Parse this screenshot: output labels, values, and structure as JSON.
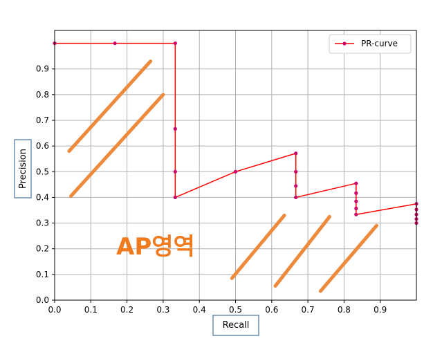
{
  "chart_data": {
    "type": "line",
    "title": "",
    "xlabel": "Recall",
    "ylabel": "Precision",
    "xlim": [
      0,
      1.0
    ],
    "ylim": [
      0,
      1.05
    ],
    "grid": true,
    "x_ticks": [
      "0.0",
      "0.1",
      "0.2",
      "0.3",
      "0.4",
      "0.5",
      "0.6",
      "0.7",
      "0.8",
      "0.9"
    ],
    "y_ticks": [
      "0.0",
      "0.1",
      "0.2",
      "0.3",
      "0.4",
      "0.5",
      "0.6",
      "0.7",
      "0.8",
      "0.9"
    ],
    "legend": {
      "placement": "top-right",
      "entries": [
        "PR-curve"
      ]
    },
    "series": [
      {
        "name": "PR-curve",
        "color": "#ff0000",
        "marker_color": "#cc0066",
        "points": [
          [
            0.0,
            1.0
          ],
          [
            0.1667,
            1.0
          ],
          [
            0.3333,
            1.0
          ],
          [
            0.3333,
            0.6667
          ],
          [
            0.3333,
            0.5
          ],
          [
            0.3333,
            0.4
          ],
          [
            0.5,
            0.5
          ],
          [
            0.6667,
            0.5714
          ],
          [
            0.6667,
            0.5
          ],
          [
            0.6667,
            0.4444
          ],
          [
            0.6667,
            0.4
          ],
          [
            0.8333,
            0.4545
          ],
          [
            0.8333,
            0.4167
          ],
          [
            0.8333,
            0.3846
          ],
          [
            0.8333,
            0.3571
          ],
          [
            0.8333,
            0.3333
          ],
          [
            1.0,
            0.375
          ],
          [
            1.0,
            0.3529
          ],
          [
            1.0,
            0.3333
          ],
          [
            1.0,
            0.3158
          ],
          [
            1.0,
            0.3
          ]
        ]
      }
    ],
    "annotations": [
      {
        "text": "AP영역",
        "color": "#f07a1e"
      }
    ],
    "hatch_strokes": {
      "color": "#ed8a3c",
      "upper": [
        [
          [
            0.04,
            0.58
          ],
          [
            0.265,
            0.93
          ]
        ],
        [
          [
            0.045,
            0.405
          ],
          [
            0.3,
            0.8
          ]
        ]
      ],
      "lower": [
        [
          [
            0.49,
            0.085
          ],
          [
            0.635,
            0.33
          ]
        ],
        [
          [
            0.61,
            0.055
          ],
          [
            0.76,
            0.325
          ]
        ],
        [
          [
            0.735,
            0.035
          ],
          [
            0.89,
            0.29
          ]
        ]
      ]
    }
  }
}
